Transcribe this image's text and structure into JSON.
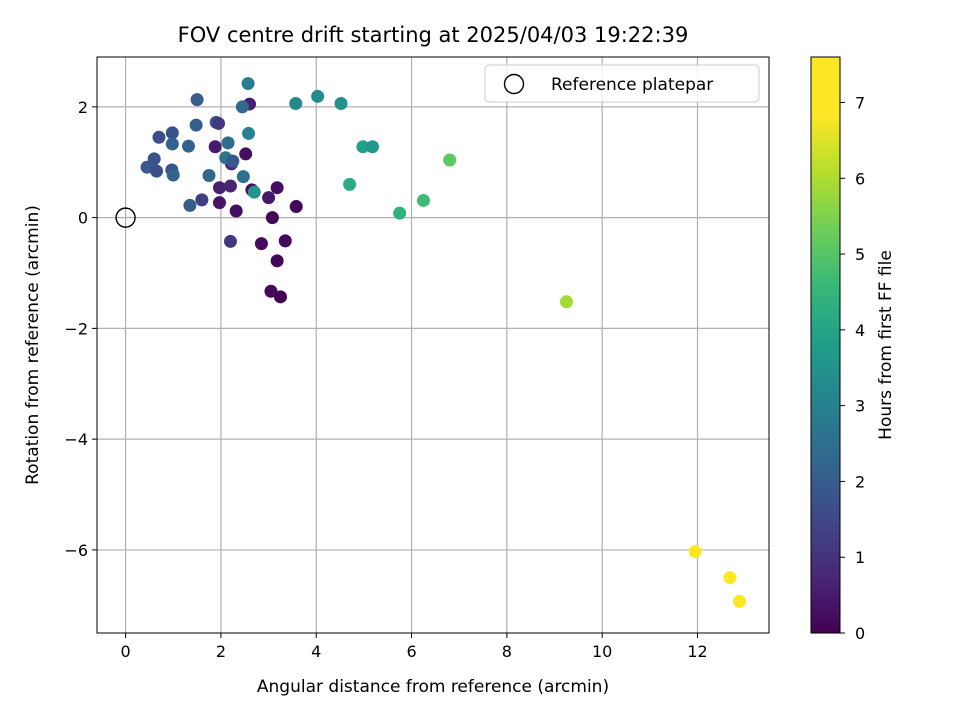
{
  "chart_data": {
    "type": "scatter",
    "title": "FOV centre drift starting at 2025/04/03 19:22:39",
    "xlabel": "Angular distance from reference (arcmin)",
    "ylabel": "Rotation from reference (arcmin)",
    "xlim": [
      -0.6,
      13.5
    ],
    "ylim": [
      -7.5,
      2.9
    ],
    "xticks": [
      0,
      2,
      4,
      6,
      8,
      10,
      12
    ],
    "yticks": [
      -6,
      -4,
      -2,
      0,
      2
    ],
    "xtick_labels": [
      "0",
      "2",
      "4",
      "6",
      "8",
      "10",
      "12"
    ],
    "ytick_labels": [
      "−6",
      "−4",
      "−2",
      "0",
      "2"
    ],
    "grid": true,
    "legend": {
      "position": "top-right",
      "label": "Reference platepar"
    },
    "reference_point": {
      "x": 0,
      "y": 0
    },
    "colorbar": {
      "label": "Hours from first FF file",
      "colormap": "viridis",
      "range": [
        0,
        7.6
      ],
      "ticks": [
        0,
        1,
        2,
        3,
        4,
        5,
        6,
        7
      ],
      "tick_labels": [
        "0",
        "1",
        "2",
        "3",
        "4",
        "5",
        "6",
        "7"
      ]
    },
    "points": [
      {
        "x": 3.25,
        "y": -1.43,
        "t": 0.05
      },
      {
        "x": 3.05,
        "y": -1.33,
        "t": 0.15
      },
      {
        "x": 3.18,
        "y": -0.78,
        "t": 0.1
      },
      {
        "x": 2.85,
        "y": -0.47,
        "t": 0.2
      },
      {
        "x": 3.35,
        "y": -0.42,
        "t": 0.15
      },
      {
        "x": 3.08,
        "y": 0.0,
        "t": 0.1
      },
      {
        "x": 3.58,
        "y": 0.2,
        "t": 0.1
      },
      {
        "x": 3.18,
        "y": 0.54,
        "t": 0.25
      },
      {
        "x": 3.0,
        "y": 0.36,
        "t": 0.4
      },
      {
        "x": 2.32,
        "y": 0.12,
        "t": 0.3
      },
      {
        "x": 1.97,
        "y": 0.27,
        "t": 0.35
      },
      {
        "x": 1.97,
        "y": 0.54,
        "t": 0.6
      },
      {
        "x": 2.2,
        "y": -0.43,
        "t": 1.1
      },
      {
        "x": 2.52,
        "y": 1.15,
        "t": 0.3
      },
      {
        "x": 2.2,
        "y": 0.57,
        "t": 0.7
      },
      {
        "x": 2.65,
        "y": 0.5,
        "t": 0.2
      },
      {
        "x": 2.6,
        "y": 2.05,
        "t": 0.6
      },
      {
        "x": 1.88,
        "y": 1.28,
        "t": 0.5
      },
      {
        "x": 2.22,
        "y": 0.97,
        "t": 0.8
      },
      {
        "x": 1.6,
        "y": 0.32,
        "t": 1.3
      },
      {
        "x": 1.35,
        "y": 0.22,
        "t": 2.0
      },
      {
        "x": 0.45,
        "y": 0.91,
        "t": 1.9
      },
      {
        "x": 0.6,
        "y": 1.06,
        "t": 1.8
      },
      {
        "x": 0.65,
        "y": 0.84,
        "t": 1.7
      },
      {
        "x": 0.7,
        "y": 1.45,
        "t": 1.6
      },
      {
        "x": 0.98,
        "y": 1.53,
        "t": 1.8
      },
      {
        "x": 0.98,
        "y": 1.33,
        "t": 2.1
      },
      {
        "x": 0.97,
        "y": 0.86,
        "t": 1.75
      },
      {
        "x": 1.0,
        "y": 0.77,
        "t": 2.2
      },
      {
        "x": 1.32,
        "y": 1.29,
        "t": 2.15
      },
      {
        "x": 1.48,
        "y": 1.67,
        "t": 2.0
      },
      {
        "x": 1.5,
        "y": 2.13,
        "t": 2.0
      },
      {
        "x": 1.75,
        "y": 0.76,
        "t": 2.3
      },
      {
        "x": 1.9,
        "y": 1.72,
        "t": 1.9
      },
      {
        "x": 1.95,
        "y": 1.7,
        "t": 1.1
      },
      {
        "x": 2.1,
        "y": 1.08,
        "t": 2.6
      },
      {
        "x": 2.15,
        "y": 1.35,
        "t": 2.4
      },
      {
        "x": 2.25,
        "y": 1.02,
        "t": 1.9
      },
      {
        "x": 2.45,
        "y": 2.0,
        "t": 2.3
      },
      {
        "x": 2.47,
        "y": 0.74,
        "t": 2.5
      },
      {
        "x": 2.58,
        "y": 1.52,
        "t": 3.0
      },
      {
        "x": 2.57,
        "y": 2.42,
        "t": 2.9
      },
      {
        "x": 2.7,
        "y": 0.46,
        "t": 3.5
      },
      {
        "x": 3.57,
        "y": 2.06,
        "t": 3.2
      },
      {
        "x": 4.03,
        "y": 2.19,
        "t": 3.3
      },
      {
        "x": 4.52,
        "y": 2.06,
        "t": 3.5
      },
      {
        "x": 4.98,
        "y": 1.28,
        "t": 3.9
      },
      {
        "x": 5.18,
        "y": 1.28,
        "t": 3.7
      },
      {
        "x": 4.7,
        "y": 0.6,
        "t": 4.2
      },
      {
        "x": 5.75,
        "y": 0.08,
        "t": 4.4
      },
      {
        "x": 6.25,
        "y": 0.31,
        "t": 4.7
      },
      {
        "x": 6.8,
        "y": 1.04,
        "t": 5.1
      },
      {
        "x": 9.25,
        "y": -1.52,
        "t": 5.9
      },
      {
        "x": 11.95,
        "y": -6.03,
        "t": 7.5
      },
      {
        "x": 12.68,
        "y": -6.5,
        "t": 7.55
      },
      {
        "x": 12.88,
        "y": -6.93,
        "t": 7.6
      }
    ]
  }
}
